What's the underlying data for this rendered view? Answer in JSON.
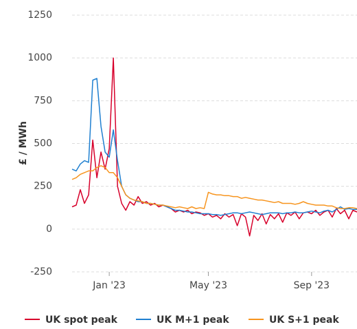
{
  "chart_data": {
    "type": "line",
    "y_label": "£ / MWh",
    "categories": [
      null,
      null,
      null,
      null,
      null,
      null,
      null,
      null,
      null,
      "Jan '23",
      null,
      null,
      null,
      null,
      null,
      null,
      null,
      null,
      null,
      null,
      null,
      null,
      null,
      null,
      null,
      null,
      null,
      null,
      null,
      null,
      null,
      null,
      null,
      "May '23",
      null,
      null,
      null,
      null,
      null,
      null,
      null,
      null,
      null,
      null,
      null,
      null,
      null,
      null,
      null,
      null,
      null,
      null,
      null,
      null,
      null,
      null,
      null,
      null,
      "Sep '23",
      null,
      null,
      null,
      null,
      null,
      null,
      null,
      null,
      null,
      null,
      null
    ],
    "series": [
      {
        "name": "UK spot peak",
        "color": "#d7002b",
        "values": [
          130,
          140,
          230,
          150,
          200,
          520,
          300,
          450,
          350,
          470,
          1000,
          250,
          150,
          110,
          160,
          140,
          190,
          150,
          160,
          140,
          150,
          130,
          140,
          130,
          120,
          100,
          110,
          100,
          110,
          90,
          100,
          95,
          80,
          90,
          70,
          80,
          60,
          90,
          70,
          85,
          20,
          90,
          70,
          -40,
          80,
          50,
          90,
          30,
          85,
          60,
          90,
          40,
          95,
          80,
          100,
          60,
          95,
          100,
          90,
          110,
          80,
          100,
          110,
          70,
          120,
          90,
          110,
          60,
          110,
          100
        ]
      },
      {
        "name": "UK M+1 peak",
        "color": "#1f7fd0",
        "values": [
          350,
          340,
          380,
          400,
          390,
          870,
          880,
          600,
          450,
          420,
          580,
          400,
          250,
          200,
          180,
          170,
          160,
          160,
          150,
          150,
          145,
          140,
          140,
          130,
          120,
          110,
          110,
          105,
          100,
          100,
          95,
          90,
          90,
          90,
          85,
          85,
          80,
          85,
          90,
          95,
          95,
          90,
          95,
          100,
          95,
          90,
          85,
          90,
          95,
          95,
          95,
          90,
          95,
          95,
          100,
          95,
          95,
          100,
          105,
          100,
          95,
          105,
          110,
          100,
          115,
          130,
          115,
          120,
          115,
          115
        ]
      },
      {
        "name": "UK S+1 peak",
        "color": "#f7941d",
        "values": [
          290,
          300,
          320,
          330,
          340,
          340,
          360,
          370,
          360,
          330,
          330,
          300,
          250,
          200,
          180,
          170,
          165,
          160,
          150,
          150,
          145,
          140,
          140,
          135,
          130,
          125,
          130,
          125,
          120,
          130,
          120,
          125,
          120,
          215,
          205,
          200,
          200,
          195,
          195,
          190,
          190,
          180,
          185,
          180,
          175,
          170,
          170,
          165,
          160,
          155,
          160,
          150,
          150,
          150,
          145,
          150,
          160,
          150,
          145,
          140,
          140,
          140,
          135,
          135,
          125,
          120,
          120,
          125,
          125,
          120
        ]
      }
    ],
    "ylim": [
      -250,
      1250
    ],
    "yticks": [
      -250,
      0,
      250,
      500,
      750,
      1000,
      1250
    ],
    "grid": true
  }
}
